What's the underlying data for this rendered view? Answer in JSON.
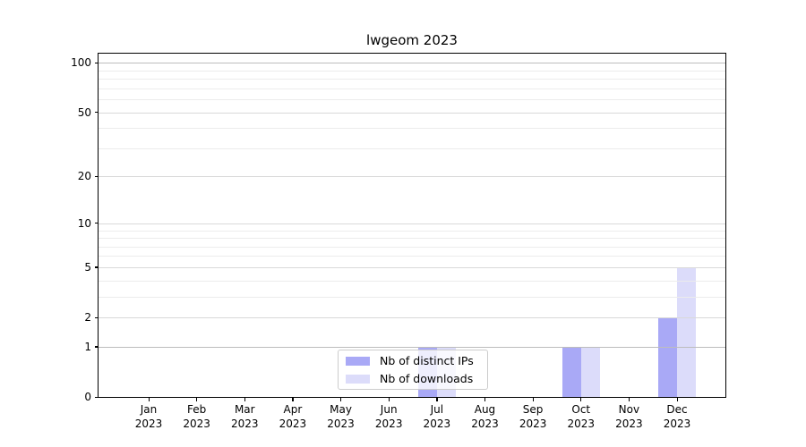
{
  "chart_data": {
    "type": "bar",
    "title": "lwgeom 2023",
    "categories": [
      "Jan",
      "Feb",
      "Mar",
      "Apr",
      "May",
      "Jun",
      "Jul",
      "Aug",
      "Sep",
      "Oct",
      "Nov",
      "Dec"
    ],
    "x_tick_second_line": "2023",
    "series": [
      {
        "name": "Nb of distinct IPs",
        "color": "#a9a9f6",
        "values": [
          0,
          0,
          0,
          0,
          0,
          0,
          1,
          0,
          0,
          1,
          0,
          2
        ]
      },
      {
        "name": "Nb of downloads",
        "color": "#dcdcfa",
        "values": [
          0,
          0,
          0,
          0,
          0,
          0,
          1,
          0,
          0,
          1,
          0,
          5
        ]
      }
    ],
    "yscale": "log10(1+value)",
    "yticks": [
      0,
      1,
      2,
      5,
      10,
      20,
      50,
      100
    ],
    "ytick_labels": [
      "0",
      "1",
      "2",
      "5",
      "10",
      "20",
      "50",
      "100"
    ],
    "minor_yticks": [
      3,
      4,
      6,
      7,
      8,
      9,
      30,
      40,
      60,
      70,
      80,
      90
    ],
    "ylim": [
      0,
      113
    ],
    "xlabel": "",
    "ylabel": "",
    "grid": true,
    "legend_position": "lower center"
  },
  "colors": {
    "background": "#ffffff",
    "bar_distinct_ips": "#a9a9f6",
    "bar_downloads": "#dcdcfa",
    "grid_major_strong": "#bdbdbd",
    "grid_major": "#d9d9d9",
    "grid_minor": "#ececec",
    "spine": "#000000",
    "text": "#000000",
    "legend_border": "#cccccc"
  }
}
